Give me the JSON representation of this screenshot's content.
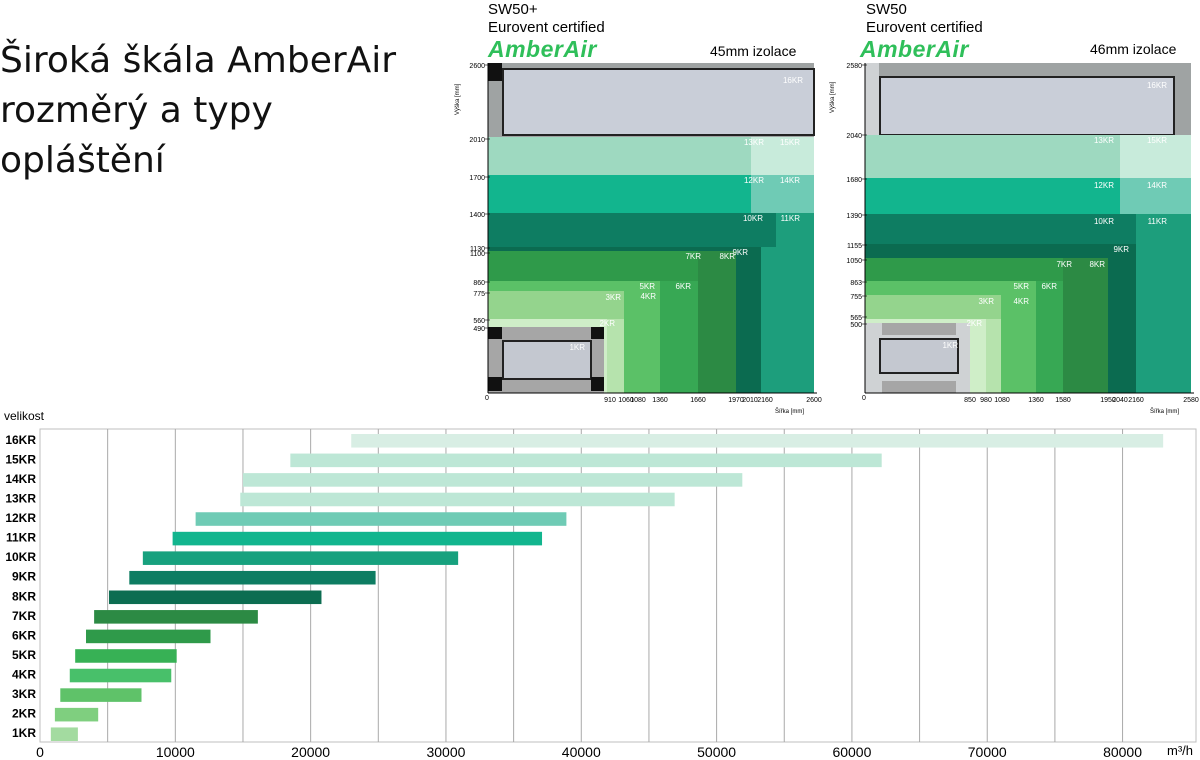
{
  "headline": [
    "Široká škála AmberAir",
    "rozměrý a typy",
    "opláštění"
  ],
  "panels": [
    {
      "model": "SW50+",
      "cert": "Eurovent certified",
      "logo": "AmberAir",
      "insulation": "45mm izolace",
      "ylabel": "Výška [mm]",
      "xlabel": "Šířka [mm]",
      "origin": "0",
      "yticks": [
        "2600",
        "2010",
        "1700",
        "1400",
        "1130",
        "1100",
        "860",
        "775",
        "560",
        "490"
      ],
      "xticks": [
        "910",
        "1060",
        "1080",
        "1360",
        "1660",
        "1970",
        "2010",
        "2160",
        "2600"
      ],
      "zones": [
        "16KR",
        "13KR",
        "15KR",
        "12KR",
        "14KR",
        "10KR",
        "11KR",
        "9KR",
        "7KR",
        "8KR",
        "5KR",
        "6KR",
        "4KR",
        "3KR",
        "2KR",
        "1KR"
      ]
    },
    {
      "model": "SW50",
      "cert": "Eurovent certified",
      "logo": "AmberAir",
      "insulation": "46mm izolace",
      "ylabel": "Výška [mm]",
      "xlabel": "Šířka [mm]",
      "origin": "0",
      "yticks": [
        "2580",
        "2040",
        "1680",
        "1390",
        "1155",
        "1050",
        "863",
        "755",
        "565",
        "500"
      ],
      "xticks": [
        "850",
        "980",
        "1080",
        "1360",
        "1580",
        "1950",
        "2040",
        "2160",
        "2580"
      ],
      "zones": [
        "16KR",
        "13KR",
        "15KR",
        "12KR",
        "14KR",
        "10KR",
        "11KR",
        "9KR",
        "7KR",
        "8KR",
        "5KR",
        "6KR",
        "4KR",
        "3KR",
        "2KR",
        "1KR"
      ]
    }
  ],
  "chart_data": {
    "type": "bar",
    "ylabel": "velikost",
    "xlabel_unit": "m³/h",
    "xlim": [
      0,
      85000
    ],
    "xticks": [
      "0",
      "10000",
      "20000",
      "30000",
      "40000",
      "50000",
      "60000",
      "70000",
      "80000"
    ],
    "grid": true,
    "categories": [
      "16KR",
      "15KR",
      "14KR",
      "13KR",
      "12KR",
      "11KR",
      "10KR",
      "9KR",
      "8KR",
      "7KR",
      "6KR",
      "5KR",
      "4KR",
      "3KR",
      "2KR",
      "1KR"
    ],
    "ranges": [
      [
        23000,
        83000
      ],
      [
        18500,
        62200
      ],
      [
        15000,
        51900
      ],
      [
        14800,
        46900
      ],
      [
        11500,
        38900
      ],
      [
        9800,
        37100
      ],
      [
        7600,
        30900
      ],
      [
        6600,
        24800
      ],
      [
        5100,
        20800
      ],
      [
        4000,
        16100
      ],
      [
        3400,
        12600
      ],
      [
        2600,
        10100
      ],
      [
        2200,
        9700
      ],
      [
        1500,
        7500
      ],
      [
        1100,
        4300
      ],
      [
        800,
        2800
      ]
    ],
    "colors": [
      "#d8eee4",
      "#bde7d6",
      "#bde7d6",
      "#bde7d6",
      "#6fcbb5",
      "#12b58e",
      "#17a17e",
      "#0e7d62",
      "#0c6d51",
      "#2c8a44",
      "#2f9a4a",
      "#37b155",
      "#48c06a",
      "#5fc269",
      "#7fcf7f",
      "#a3dba0"
    ]
  }
}
